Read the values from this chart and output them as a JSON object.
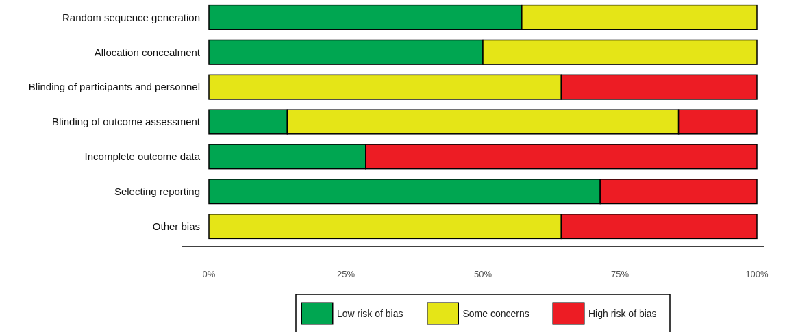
{
  "chart_data": {
    "type": "bar",
    "orientation": "horizontal",
    "stacked": true,
    "categories": [
      "Random sequence generation",
      "Allocation concealment",
      "Blinding of participants and personnel",
      "Blinding of outcome assessment",
      "Incomplete outcome data",
      "Selecting reporting",
      "Other bias"
    ],
    "series": [
      {
        "name": "Low risk of bias",
        "color": "#00a651",
        "values": [
          57.1,
          50,
          0,
          14.3,
          28.6,
          71.4,
          0
        ]
      },
      {
        "name": "Some concerns",
        "color": "#e5e517",
        "values": [
          42.9,
          50,
          64.3,
          71.4,
          0,
          0,
          64.3
        ]
      },
      {
        "name": "High risk of bias",
        "color": "#ed1c24",
        "values": [
          0,
          0,
          35.7,
          14.3,
          71.4,
          28.6,
          35.7
        ]
      }
    ],
    "xlim": [
      0,
      100
    ],
    "xticks": [
      {
        "value": 0,
        "label": "0%"
      },
      {
        "value": 25,
        "label": "25%"
      },
      {
        "value": 50,
        "label": "50%"
      },
      {
        "value": 75,
        "label": "75%"
      },
      {
        "value": 100,
        "label": "100%"
      }
    ],
    "legend": "bottom"
  }
}
